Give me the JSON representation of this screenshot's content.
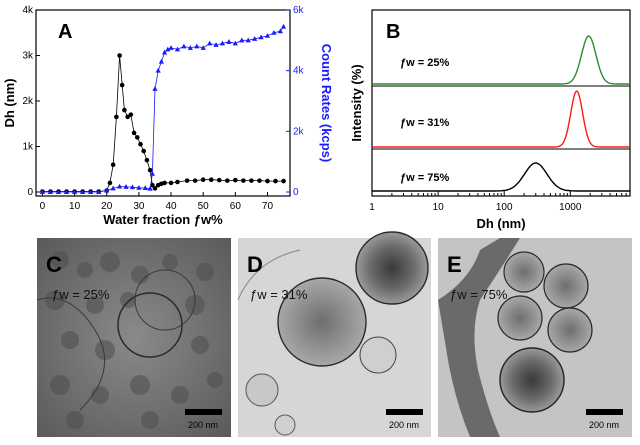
{
  "panelA": {
    "letter": "A",
    "xlabel": "Water fraction ƒw%",
    "ylabel_left": "Dh (nm)",
    "ylabel_right": "Count Rates (kcps)",
    "xticks": [
      "0",
      "10",
      "20",
      "30",
      "40",
      "50",
      "60",
      "70"
    ],
    "yticks_left": [
      "0",
      "1k",
      "2k",
      "3k",
      "4k"
    ],
    "yticks_right": [
      "0",
      "2k",
      "4k",
      "6k"
    ],
    "colors": {
      "dh": "#000000",
      "count": "#1a1aff"
    }
  },
  "panelB": {
    "letter": "B",
    "xlabel": "Dh (nm)",
    "ylabel": "Intensity (%)",
    "xticks": [
      "1",
      "10",
      "100",
      "1000"
    ],
    "labels": [
      "ƒw = 25%",
      "ƒw = 31%",
      "ƒw = 75%"
    ],
    "colors": [
      "#2e8b2e",
      "#ff1a1a",
      "#000000"
    ]
  },
  "images": [
    {
      "letter": "C",
      "label": "ƒw = 25%",
      "scale": "200 nm"
    },
    {
      "letter": "D",
      "label": "ƒw = 31%",
      "scale": "200 nm"
    },
    {
      "letter": "E",
      "label": "ƒw = 75%",
      "scale": "200 nm"
    }
  ],
  "chart_data": [
    {
      "type": "scatter",
      "xlim": [
        -2,
        77
      ],
      "ylim_left": [
        0,
        4000
      ],
      "ylim_right": [
        0,
        6000
      ],
      "series": [
        {
          "axis": "left",
          "points": [
            [
              0,
              10
            ],
            [
              2.5,
              10
            ],
            [
              5,
              10
            ],
            [
              7.5,
              10
            ],
            [
              10,
              10
            ],
            [
              12.5,
              10
            ],
            [
              15,
              10
            ],
            [
              17.5,
              10
            ],
            [
              20,
              30
            ],
            [
              21,
              200
            ],
            [
              22,
              600
            ],
            [
              23,
              1650
            ],
            [
              24,
              3000
            ],
            [
              24.8,
              2350
            ],
            [
              25.5,
              1800
            ],
            [
              26.5,
              1650
            ],
            [
              27.5,
              1700
            ],
            [
              28.5,
              1300
            ],
            [
              29.5,
              1200
            ],
            [
              30.5,
              1050
            ],
            [
              31.5,
              900
            ],
            [
              32.5,
              700
            ],
            [
              33.5,
              480
            ],
            [
              34.2,
              150
            ],
            [
              35,
              80
            ],
            [
              36,
              150
            ],
            [
              37,
              180
            ],
            [
              38,
              200
            ],
            [
              40,
              200
            ],
            [
              42,
              220
            ],
            [
              45,
              250
            ],
            [
              47.5,
              250
            ],
            [
              50,
              270
            ],
            [
              52.5,
              270
            ],
            [
              55,
              260
            ],
            [
              57.5,
              250
            ],
            [
              60,
              260
            ],
            [
              62.5,
              250
            ],
            [
              65,
              250
            ],
            [
              67.5,
              250
            ],
            [
              70,
              240
            ],
            [
              72.5,
              240
            ],
            [
              75,
              240
            ]
          ]
        },
        {
          "axis": "right",
          "points": [
            [
              0,
              0
            ],
            [
              2.5,
              0
            ],
            [
              5,
              0
            ],
            [
              7.5,
              0
            ],
            [
              10,
              0
            ],
            [
              12.5,
              0
            ],
            [
              15,
              0
            ],
            [
              17.5,
              0
            ],
            [
              20,
              50
            ],
            [
              22,
              120
            ],
            [
              24,
              180
            ],
            [
              26,
              170
            ],
            [
              28,
              160
            ],
            [
              30,
              140
            ],
            [
              32,
              130
            ],
            [
              33.5,
              110
            ],
            [
              34.2,
              600
            ],
            [
              35,
              3400
            ],
            [
              36,
              4000
            ],
            [
              37,
              4300
            ],
            [
              38,
              4600
            ],
            [
              39,
              4700
            ],
            [
              40,
              4750
            ],
            [
              42,
              4700
            ],
            [
              44,
              4800
            ],
            [
              46,
              4750
            ],
            [
              48,
              4800
            ],
            [
              50,
              4750
            ],
            [
              52,
              4900
            ],
            [
              54,
              4850
            ],
            [
              56,
              4900
            ],
            [
              58,
              4950
            ],
            [
              60,
              4900
            ],
            [
              62,
              5000
            ],
            [
              64,
              5000
            ],
            [
              66,
              5050
            ],
            [
              68,
              5100
            ],
            [
              70,
              5150
            ],
            [
              72,
              5250
            ],
            [
              74,
              5300
            ],
            [
              75,
              5450
            ]
          ]
        }
      ]
    },
    {
      "type": "line",
      "xscale": "log",
      "xlim": [
        1,
        8000
      ],
      "series": [
        {
          "center_nm": 1900,
          "peak": 1
        },
        {
          "center_nm": 1250,
          "peak": 1
        },
        {
          "center_nm": 300,
          "peak": 1
        }
      ]
    }
  ]
}
